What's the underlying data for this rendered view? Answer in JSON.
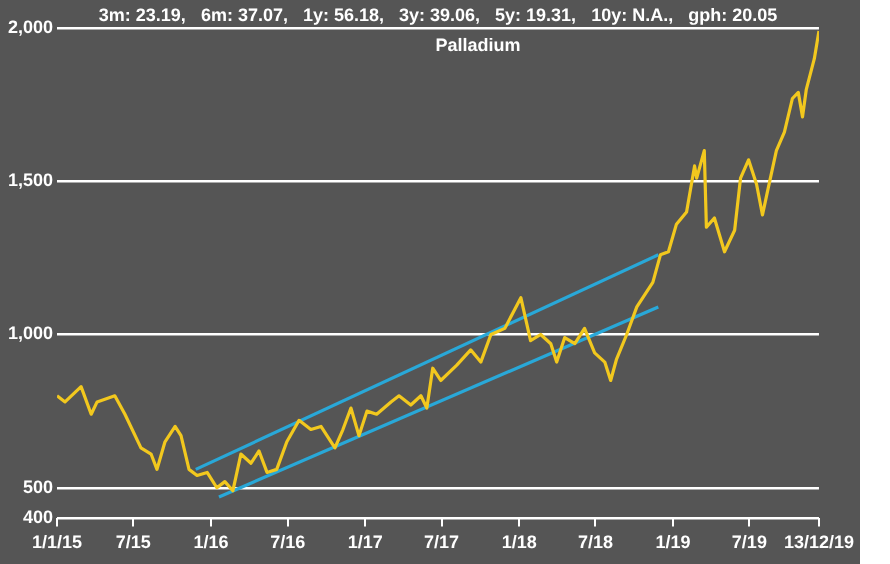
{
  "chart_data": {
    "type": "line",
    "title": "Palladium",
    "subtitle": "3m: 23.19,   6m: 37.07,   1y: 56.18,   3y: 39.06,   5y: 19.31,   10y: N.A.,   gph: 20.05",
    "xlim": [
      "2015-01-01",
      "2019-12-13"
    ],
    "xticks": [
      {
        "value": "2015-01-01",
        "label": "1/1/15"
      },
      {
        "value": "2015-07-01",
        "label": "7/15"
      },
      {
        "value": "2016-01-01",
        "label": "1/16"
      },
      {
        "value": "2016-07-01",
        "label": "7/16"
      },
      {
        "value": "2017-01-01",
        "label": "1/17"
      },
      {
        "value": "2017-07-01",
        "label": "7/17"
      },
      {
        "value": "2018-01-01",
        "label": "1/18"
      },
      {
        "value": "2018-07-01",
        "label": "7/18"
      },
      {
        "value": "2019-01-01",
        "label": "1/19"
      },
      {
        "value": "2019-07-01",
        "label": "7/19"
      },
      {
        "value": "2019-12-13",
        "label": "13/12/19"
      }
    ],
    "ylim": [
      400,
      2000
    ],
    "yticks": [
      400,
      500,
      {
        "value": 1000,
        "label": "1,000"
      },
      {
        "value": 1500,
        "label": "1,500"
      },
      {
        "value": 2000,
        "label": "2,000"
      }
    ],
    "grid": "y",
    "legend": false,
    "marker": "none",
    "line_style": "solid",
    "series": [
      {
        "color": "#f2c81e",
        "x": [
          "2015-01-01",
          "2015-01-20",
          "2015-02-27",
          "2015-03-23",
          "2015-04-06",
          "2015-05-18",
          "2015-06-11",
          "2015-07-19",
          "2015-08-12",
          "2015-08-26",
          "2015-09-14",
          "2015-10-08",
          "2015-10-22",
          "2015-11-10",
          "2015-11-29",
          "2015-12-23",
          "2016-01-15",
          "2016-02-03",
          "2016-02-22",
          "2016-03-12",
          "2016-04-05",
          "2016-04-24",
          "2016-05-13",
          "2016-06-05",
          "2016-06-29",
          "2016-07-28",
          "2016-08-25",
          "2016-09-18",
          "2016-10-21",
          "2016-11-09",
          "2016-11-28",
          "2016-12-17",
          "2017-01-05",
          "2017-01-28",
          "2017-03-03",
          "2017-03-22",
          "2017-04-19",
          "2017-05-13",
          "2017-05-27",
          "2017-06-10",
          "2017-06-29",
          "2017-08-06",
          "2017-09-08",
          "2017-10-02",
          "2017-10-26",
          "2017-11-28",
          "2018-01-05",
          "2018-01-28",
          "2018-02-21",
          "2018-03-17",
          "2018-03-31",
          "2018-04-19",
          "2018-05-13",
          "2018-06-05",
          "2018-06-29",
          "2018-07-23",
          "2018-08-06",
          "2018-08-20",
          "2018-09-13",
          "2018-10-07",
          "2018-10-26",
          "2018-11-14",
          "2018-12-02",
          "2018-12-21",
          "2019-01-09",
          "2019-02-02",
          "2019-02-21",
          "2019-02-26",
          "2019-03-16",
          "2019-03-21",
          "2019-04-09",
          "2019-05-03",
          "2019-05-27",
          "2019-06-10",
          "2019-06-29",
          "2019-07-18",
          "2019-08-01",
          "2019-08-15",
          "2019-09-03",
          "2019-09-22",
          "2019-10-11",
          "2019-10-25",
          "2019-11-04",
          "2019-11-13",
          "2019-12-02",
          "2019-12-13"
        ],
        "values": [
          800,
          780,
          830,
          740,
          780,
          800,
          740,
          630,
          610,
          560,
          650,
          700,
          670,
          560,
          540,
          550,
          500,
          520,
          490,
          610,
          580,
          620,
          550,
          560,
          650,
          720,
          690,
          700,
          630,
          690,
          760,
          670,
          750,
          740,
          780,
          800,
          770,
          800,
          760,
          890,
          850,
          900,
          950,
          910,
          1000,
          1020,
          1120,
          980,
          1000,
          970,
          910,
          990,
          970,
          1020,
          940,
          910,
          850,
          920,
          1000,
          1090,
          1130,
          1170,
          1260,
          1270,
          1360,
          1400,
          1550,
          1510,
          1600,
          1350,
          1380,
          1270,
          1340,
          1510,
          1570,
          1490,
          1390,
          1480,
          1600,
          1660,
          1770,
          1790,
          1710,
          1800,
          1900,
          1990
        ]
      },
      {
        "color": "#29a8d8",
        "x": [
          "2015-11-26",
          "2018-11-27"
        ],
        "values": [
          560,
          1260
        ]
      },
      {
        "color": "#29a8d8",
        "x": [
          "2016-01-20",
          "2018-11-27"
        ],
        "values": [
          470,
          1090
        ]
      }
    ]
  }
}
